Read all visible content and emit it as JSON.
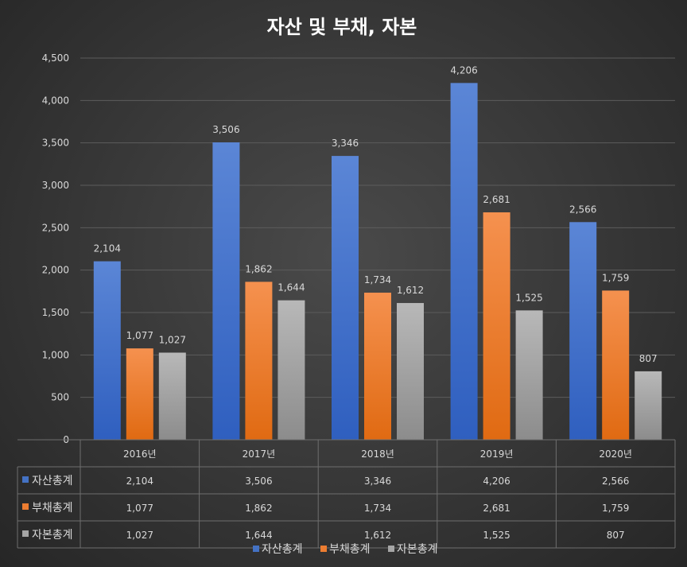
{
  "chart_data": {
    "type": "bar",
    "title": "자산 및 부채, 자본",
    "categories": [
      "2016년",
      "2017년",
      "2018년",
      "2019년",
      "2020년"
    ],
    "series": [
      {
        "name": "자산총계",
        "values": [
          2104,
          3506,
          3346,
          4206,
          2566
        ],
        "color": "#4472c4",
        "labels": [
          "2,104",
          "3,506",
          "3,346",
          "4,206",
          "2,566"
        ]
      },
      {
        "name": "부채총계",
        "values": [
          1077,
          1862,
          1734,
          2681,
          1759
        ],
        "color": "#ed7d31",
        "labels": [
          "1,077",
          "1,862",
          "1,734",
          "2,681",
          "1,759"
        ]
      },
      {
        "name": "자본총계",
        "values": [
          1027,
          1644,
          1612,
          1525,
          807
        ],
        "color": "#a5a5a5",
        "labels": [
          "1,027",
          "1,644",
          "1,612",
          "1,525",
          "807"
        ]
      }
    ],
    "ylim": [
      0,
      4500
    ],
    "yticks": [
      "0",
      "500",
      "1,000",
      "1,500",
      "2,000",
      "2,500",
      "3,000",
      "3,500",
      "4,000",
      "4,500"
    ],
    "grid": true,
    "legend": "bottom",
    "data_table": true
  }
}
